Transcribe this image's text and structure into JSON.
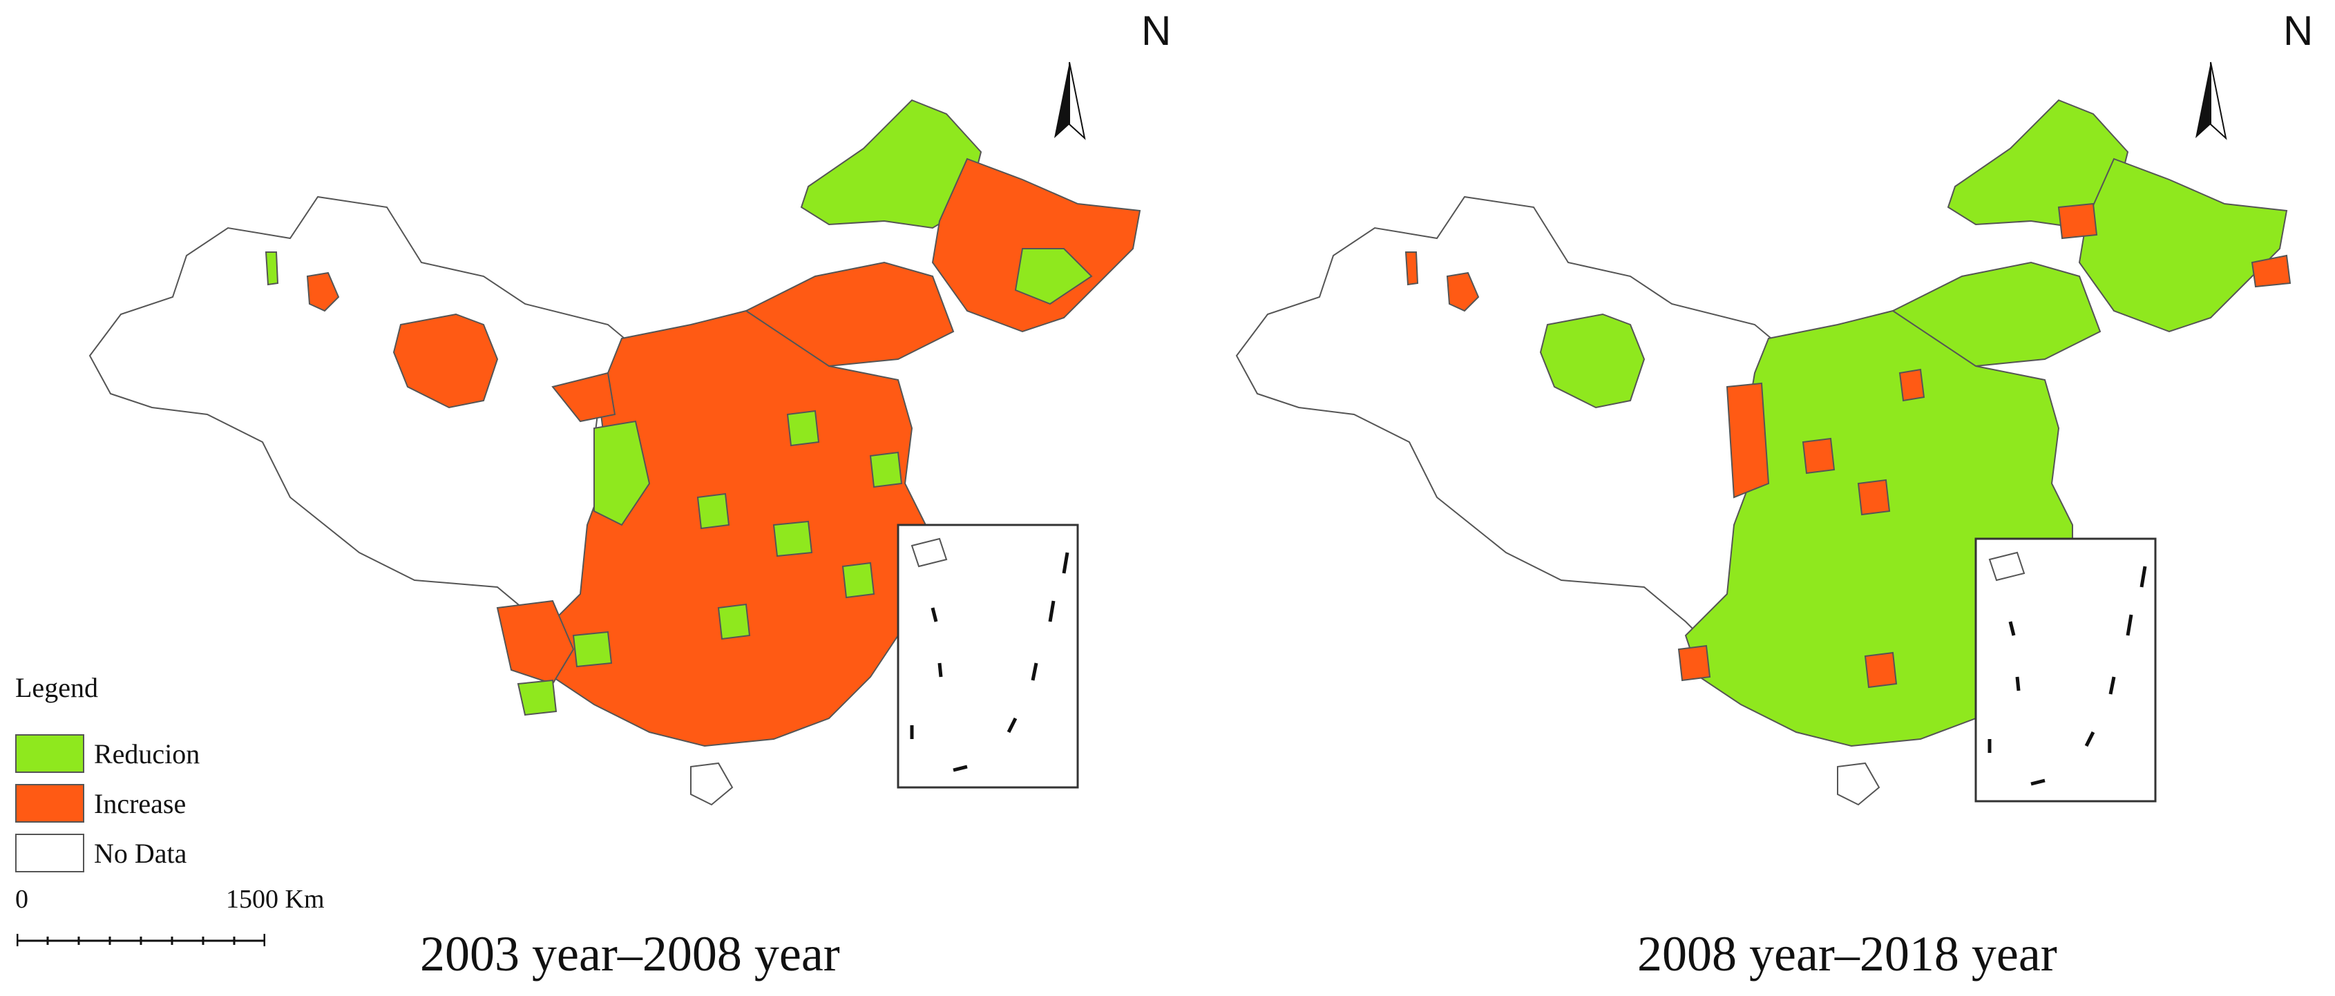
{
  "colors": {
    "reduction": "#8fe81e",
    "increase": "#ff5a14",
    "no_data": "#ffffff",
    "border": "#555555"
  },
  "legend": {
    "title": "Legend",
    "items": [
      {
        "label": "Reducion",
        "color": "#8fe81e"
      },
      {
        "label": "Increase",
        "color": "#ff5a14"
      },
      {
        "label": "No Data",
        "color": "#ffffff"
      }
    ]
  },
  "scale_bar": {
    "start_label": "0",
    "end_label": "1500 Km"
  },
  "north_arrow": {
    "label": "N",
    "icon": "north-arrow-icon"
  },
  "maps": [
    {
      "caption": "2003 year–2008 year",
      "dominant_change": "Increase"
    },
    {
      "caption": "2008 year–2018 year",
      "dominant_change": "Reducion"
    }
  ]
}
